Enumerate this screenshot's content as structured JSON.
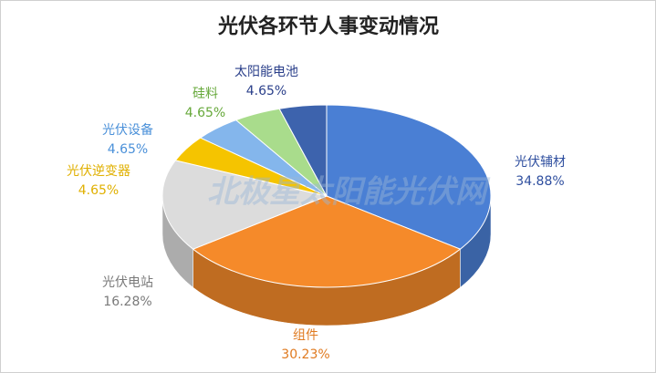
{
  "chart_data": {
    "type": "pie",
    "title": "光伏各环节人事变动情况",
    "watermark": "北极星太阳能光伏网",
    "categories": [
      "光伏辅材",
      "组件",
      "光伏电站",
      "光伏逆变器",
      "光伏设备",
      "硅料",
      "太阳能电池"
    ],
    "values": [
      34.88,
      30.23,
      16.28,
      4.65,
      4.65,
      4.65,
      4.65
    ],
    "value_labels": [
      "34.88%",
      "30.23%",
      "16.28%",
      "4.65%",
      "4.65%",
      "4.65%",
      "4.65%"
    ],
    "colors": [
      "#4a7fd4",
      "#f58a2a",
      "#dcdcdc",
      "#f5c400",
      "#84b6ec",
      "#a9dc8c",
      "#3d63ad"
    ],
    "label_colors": [
      "#2f4f9f",
      "#e07a20",
      "#7a7a7a",
      "#e0b000",
      "#4a90d9",
      "#66a83a",
      "#2a3f8a"
    ]
  }
}
